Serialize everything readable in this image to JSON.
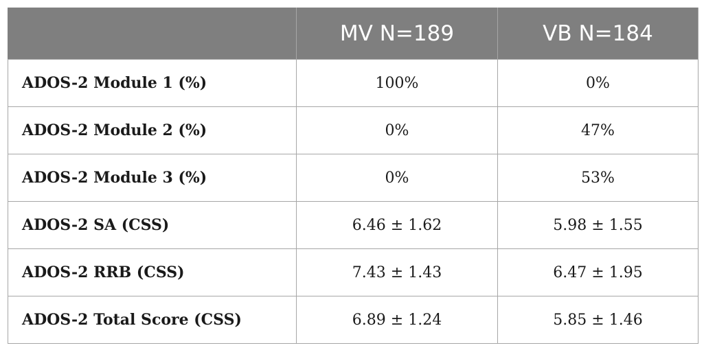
{
  "table": {
    "headers": [
      "",
      "MV N=189",
      "VB N=184"
    ],
    "rows": [
      {
        "label": "ADOS-2 Module 1 (%)",
        "mv": "100%",
        "vb": "0%"
      },
      {
        "label": "ADOS-2 Module 2 (%)",
        "mv": "0%",
        "vb": "47%"
      },
      {
        "label": "ADOS-2 Module 3 (%)",
        "mv": "0%",
        "vb": "53%"
      },
      {
        "label": "ADOS-2 SA (CSS)",
        "mv": "6.46 ± 1.62",
        "vb": "5.98 ± 1.55"
      },
      {
        "label": "ADOS-2 RRB (CSS)",
        "mv": "7.43 ± 1.43",
        "vb": "6.47 ± 1.95"
      },
      {
        "label": "ADOS-2 Total Score (CSS)",
        "mv": "6.89 ± 1.24",
        "vb": "5.85 ± 1.46"
      }
    ]
  },
  "colors": {
    "header_bg": "#7f7f7f",
    "header_text": "#ffffff",
    "border": "#a6a6a6"
  }
}
